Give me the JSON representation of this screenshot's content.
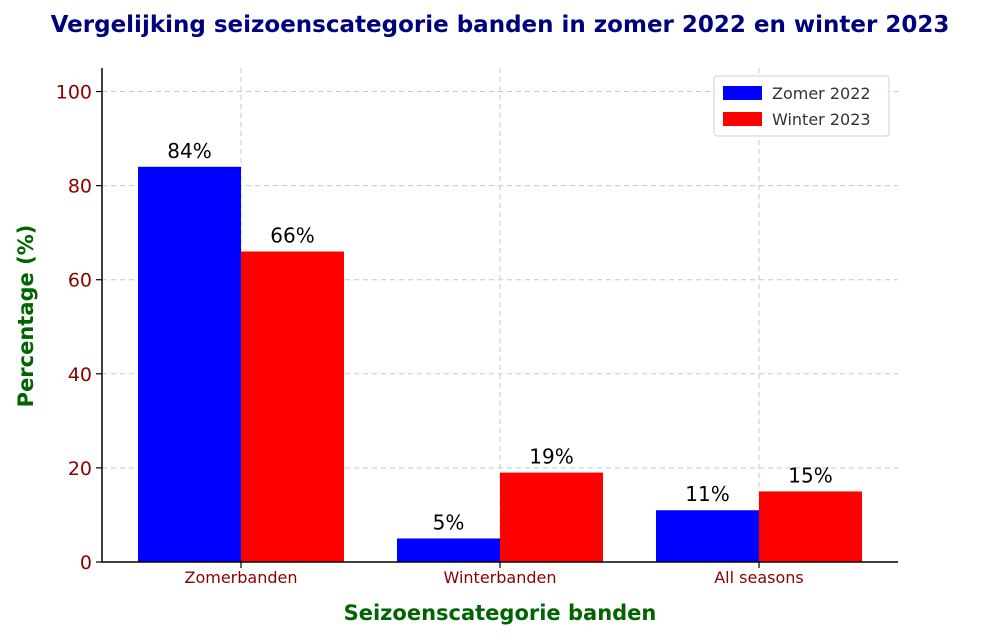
{
  "chart_data": {
    "type": "bar",
    "title": "Vergelijking seizoenscategorie banden in zomer 2022 en winter 2023",
    "xlabel": "Seizoenscategorie banden",
    "ylabel": "Percentage (%)",
    "categories": [
      "Zomerbanden",
      "Winterbanden",
      "All seasons"
    ],
    "series": [
      {
        "name": "Zomer 2022",
        "values": [
          84,
          5,
          11
        ],
        "labels": [
          "84%",
          "5%",
          "11%"
        ],
        "color": "#0000ff"
      },
      {
        "name": "Winter 2023",
        "values": [
          66,
          19,
          15
        ],
        "labels": [
          "66%",
          "19%",
          "15%"
        ],
        "color": "#ff0000"
      }
    ],
    "ylim": [
      0,
      105
    ],
    "yticks": [
      0,
      20,
      40,
      60,
      80,
      100
    ],
    "grid": true,
    "legend_position": "top-right",
    "colors": {
      "title": "#00007f",
      "axis_label": "#006400",
      "tick_label": "#8b0000"
    }
  }
}
